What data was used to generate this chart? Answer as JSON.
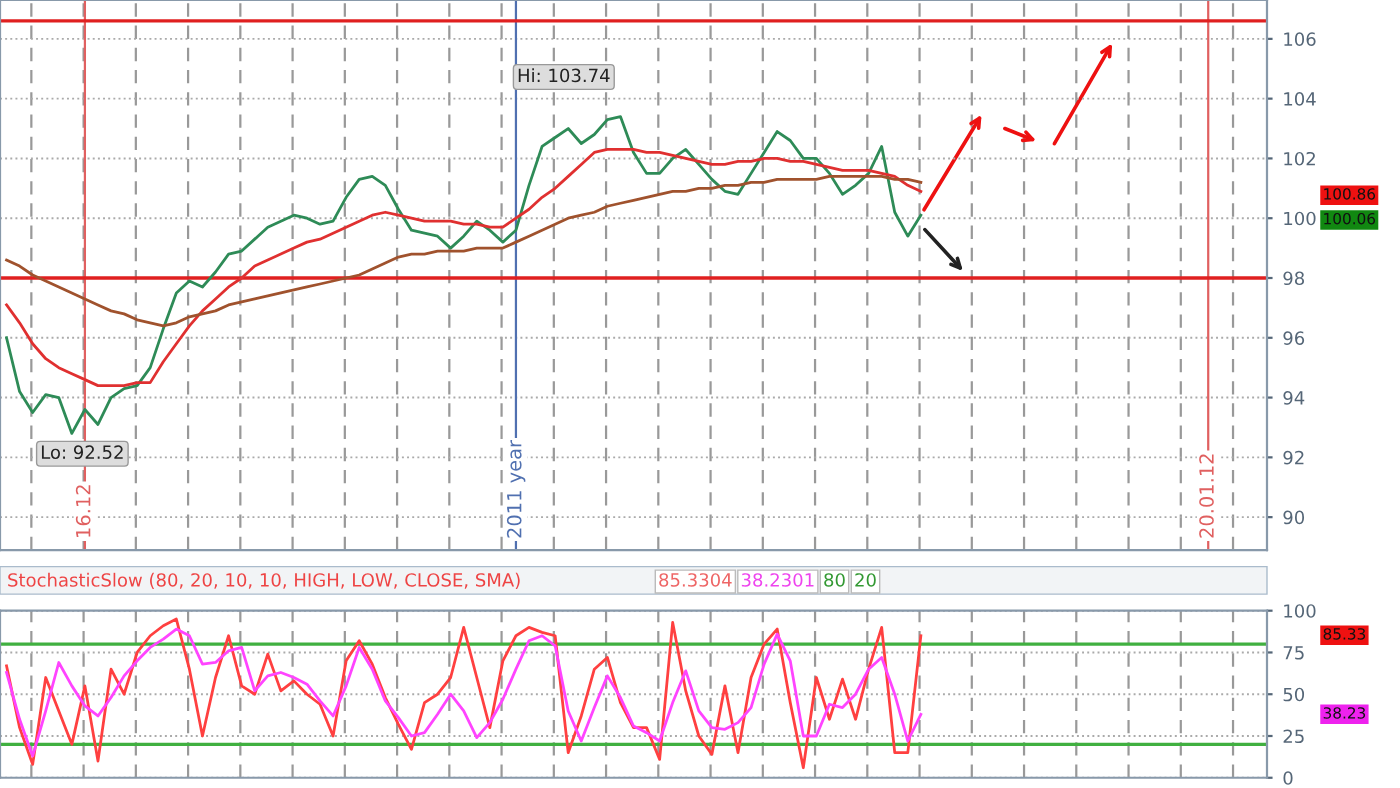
{
  "chart_data": [
    {
      "type": "line",
      "ylim": [
        88.9,
        107.3
      ],
      "yticks": [
        90,
        92,
        94,
        96,
        98,
        100,
        102,
        104,
        106
      ],
      "grid": true,
      "line_style": "solid",
      "marker": "none",
      "categories": [
        null,
        null,
        null,
        null,
        null,
        null,
        "16.12",
        null,
        null,
        null,
        null,
        null,
        null,
        null,
        null,
        null,
        null,
        null,
        null,
        null,
        null,
        null,
        null,
        null,
        null,
        null,
        null,
        null,
        null,
        null,
        null,
        null,
        null,
        null,
        null,
        null,
        null,
        null,
        null,
        "2011 year",
        null,
        null,
        null,
        null,
        null,
        null,
        null,
        null,
        null,
        null,
        null,
        null,
        null,
        null,
        null,
        null,
        null,
        null,
        null,
        null,
        null,
        null,
        null,
        null,
        null,
        null,
        null,
        null,
        null,
        null,
        null,
        null,
        null,
        null,
        null,
        null,
        null,
        null,
        null,
        null,
        null,
        null,
        null,
        null,
        null,
        null,
        null,
        null,
        null,
        null,
        null,
        null,
        "20.01.12",
        null,
        null,
        null,
        null
      ],
      "series": [
        {
          "color": "#2e8b57",
          "values": [
            96.0,
            94.2,
            93.5,
            94.1,
            94.0,
            92.8,
            93.6,
            93.1,
            94.0,
            94.3,
            94.4,
            95.0,
            96.3,
            97.5,
            97.9,
            97.7,
            98.2,
            98.8,
            98.9,
            99.3,
            99.7,
            99.9,
            100.1,
            100.0,
            99.8,
            99.9,
            100.7,
            101.3,
            101.4,
            101.1,
            100.3,
            99.6,
            99.5,
            99.4,
            99.0,
            99.4,
            99.9,
            99.6,
            99.2,
            99.6,
            101.1,
            102.4,
            102.7,
            103.0,
            102.5,
            102.8,
            103.3,
            103.4,
            102.2,
            101.5,
            101.5,
            102.0,
            102.3,
            101.8,
            101.3,
            100.9,
            100.8,
            101.5,
            102.2,
            102.9,
            102.6,
            102.0,
            102.0,
            101.5,
            100.8,
            101.1,
            101.5,
            102.4,
            100.2,
            99.4,
            100.1,
            null,
            null,
            null,
            null,
            null,
            null,
            null,
            null,
            null,
            null,
            null,
            null,
            null,
            null,
            null,
            null,
            null,
            null,
            null,
            null,
            null,
            null,
            null,
            null,
            null,
            null
          ]
        },
        {
          "color": "#e03030",
          "values": [
            97.1,
            96.5,
            95.8,
            95.3,
            95.0,
            94.8,
            94.6,
            94.4,
            94.4,
            94.4,
            94.5,
            94.5,
            95.2,
            95.8,
            96.4,
            96.9,
            97.3,
            97.7,
            98.0,
            98.4,
            98.6,
            98.8,
            99.0,
            99.2,
            99.3,
            99.5,
            99.7,
            99.9,
            100.1,
            100.2,
            100.1,
            100.0,
            99.9,
            99.9,
            99.9,
            99.8,
            99.8,
            99.7,
            99.7,
            100.0,
            100.3,
            100.7,
            101.0,
            101.4,
            101.8,
            102.2,
            102.3,
            102.3,
            102.3,
            102.2,
            102.2,
            102.1,
            102.0,
            101.9,
            101.8,
            101.8,
            101.9,
            101.9,
            102.0,
            102.0,
            101.9,
            101.9,
            101.8,
            101.7,
            101.6,
            101.6,
            101.6,
            101.5,
            101.4,
            101.1,
            100.9,
            null,
            null,
            null,
            null,
            null,
            null,
            null,
            null,
            null,
            null,
            null,
            null,
            null,
            null,
            null,
            null,
            null,
            null,
            null,
            null,
            null,
            null,
            null,
            null,
            null,
            null
          ]
        },
        {
          "color": "#a0522d",
          "values": [
            98.6,
            98.4,
            98.1,
            97.9,
            97.7,
            97.5,
            97.3,
            97.1,
            96.9,
            96.8,
            96.6,
            96.5,
            96.4,
            96.5,
            96.7,
            96.8,
            96.9,
            97.1,
            97.2,
            97.3,
            97.4,
            97.5,
            97.6,
            97.7,
            97.8,
            97.9,
            98.0,
            98.1,
            98.3,
            98.5,
            98.7,
            98.8,
            98.8,
            98.9,
            98.9,
            98.9,
            99.0,
            99.0,
            99.0,
            99.2,
            99.4,
            99.6,
            99.8,
            100.0,
            100.1,
            100.2,
            100.4,
            100.5,
            100.6,
            100.7,
            100.8,
            100.9,
            100.9,
            101.0,
            101.0,
            101.1,
            101.1,
            101.2,
            101.2,
            101.3,
            101.3,
            101.3,
            101.3,
            101.4,
            101.4,
            101.4,
            101.4,
            101.4,
            101.3,
            101.3,
            101.2,
            null,
            null,
            null,
            null,
            null,
            null,
            null,
            null,
            null,
            null,
            null,
            null,
            null,
            null,
            null,
            null,
            null,
            null,
            null,
            null,
            null,
            null,
            null,
            null,
            null,
            null
          ]
        }
      ],
      "ref_lines": [
        {
          "axis": "y",
          "value": 98,
          "color": "#e02020"
        },
        {
          "axis": "y",
          "value": 106.6,
          "color": "#e02020"
        }
      ],
      "annotations": [
        "Hi: 103.74",
        "Lo: 92.52",
        "100.86",
        "100.06"
      ]
    },
    {
      "type": "line",
      "title": "StochasticSlow (80, 20, 10, 10, HIGH, LOW, CLOSE, SMA)",
      "ylim": [
        0,
        100
      ],
      "yticks": [
        0,
        25,
        50,
        75,
        100
      ],
      "tick_labels": "y",
      "grid": true,
      "line_style": "solid",
      "marker": "none",
      "categories": [
        null,
        null,
        null,
        null,
        null,
        null,
        null,
        null,
        null,
        null,
        null,
        null,
        null,
        null,
        null,
        null,
        null,
        null,
        null,
        null,
        null,
        null,
        null,
        null,
        null,
        null,
        null,
        null,
        null,
        null,
        null,
        null,
        null,
        null,
        null,
        null,
        null,
        null,
        null,
        null,
        null,
        null,
        null,
        null,
        null,
        null,
        null,
        null,
        null,
        null,
        null,
        null,
        null,
        null,
        null,
        null,
        null,
        null,
        null,
        null,
        null,
        null,
        null,
        null,
        null,
        null,
        null,
        null,
        null,
        null,
        null,
        null,
        null,
        null,
        null,
        null,
        null,
        null,
        null,
        null,
        null,
        null,
        null,
        null,
        null,
        null,
        null,
        null,
        null,
        null,
        null,
        null,
        null,
        null,
        null,
        null,
        null
      ],
      "series": [
        {
          "color": "#ff4040",
          "values": [
            67,
            30,
            8,
            60,
            40,
            20,
            55,
            10,
            65,
            50,
            75,
            85,
            91,
            95,
            65,
            25,
            60,
            85,
            55,
            50,
            74,
            52,
            58,
            50,
            44,
            25,
            70,
            82,
            68,
            48,
            32,
            17,
            45,
            50,
            60,
            90,
            60,
            30,
            70,
            85,
            90,
            87,
            85,
            15,
            37,
            65,
            72,
            45,
            30,
            30,
            11,
            93,
            52,
            25,
            14,
            55,
            15,
            60,
            80,
            89,
            45,
            6,
            60,
            35,
            59,
            35,
            65,
            90,
            15,
            15,
            85,
            null,
            null,
            null,
            null,
            null,
            null,
            null,
            null,
            null,
            null,
            null,
            null,
            null,
            null,
            null,
            null,
            null,
            null,
            null,
            null,
            null,
            null,
            null,
            null,
            null,
            null
          ]
        },
        {
          "color": "#ff44ff",
          "values": [
            63,
            35,
            13,
            40,
            69,
            55,
            43,
            37,
            48,
            61,
            70,
            78,
            83,
            89,
            85,
            68,
            69,
            76,
            78,
            52,
            61,
            63,
            60,
            56,
            46,
            37,
            55,
            78,
            65,
            46,
            36,
            25,
            27,
            38,
            50,
            40,
            24,
            33,
            47,
            65,
            82,
            85,
            79,
            40,
            22,
            42,
            61,
            48,
            31,
            27,
            22,
            45,
            64,
            40,
            30,
            29,
            33,
            42,
            68,
            86,
            70,
            25,
            25,
            44,
            42,
            50,
            65,
            72,
            50,
            22,
            38,
            null,
            null,
            null,
            null,
            null,
            null,
            null,
            null,
            null,
            null,
            null,
            null,
            null,
            null,
            null,
            null,
            null,
            null,
            null,
            null,
            null,
            null,
            null,
            null,
            null,
            null
          ]
        }
      ],
      "ref_lines": [
        {
          "axis": "y",
          "value": 80,
          "color": "#40b040"
        },
        {
          "axis": "y",
          "value": 20,
          "color": "#40b040"
        }
      ],
      "annotations": [
        "85.3304",
        "38.2301",
        "80",
        "20",
        "85.33",
        "38.23"
      ]
    }
  ]
}
